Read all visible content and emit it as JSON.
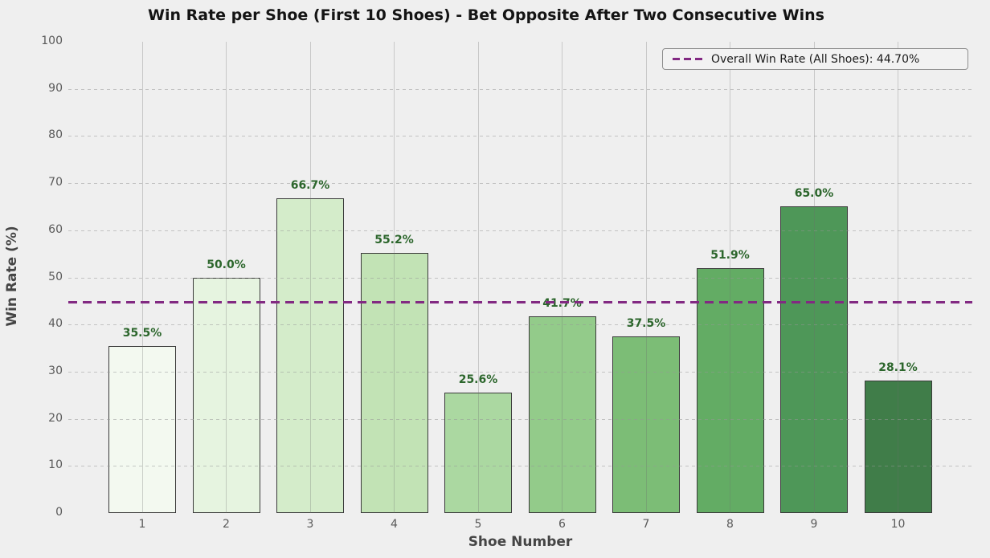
{
  "chart_data": {
    "type": "bar",
    "title": "Win Rate per Shoe (First 10 Shoes) - Bet Opposite After Two Consecutive Wins",
    "xlabel": "Shoe Number",
    "ylabel": "Win Rate (%)",
    "categories": [
      "1",
      "2",
      "3",
      "4",
      "5",
      "6",
      "7",
      "8",
      "9",
      "10"
    ],
    "values": [
      35.5,
      50.0,
      66.7,
      55.2,
      25.6,
      41.7,
      37.5,
      51.9,
      65.0,
      28.1
    ],
    "bar_labels": [
      "35.5%",
      "50.0%",
      "66.7%",
      "55.2%",
      "25.6%",
      "41.7%",
      "37.5%",
      "51.9%",
      "65.0%",
      "28.1%"
    ],
    "bar_colors": [
      "#f3f9f0",
      "#e6f4e0",
      "#d4ecca",
      "#c2e3b5",
      "#abd8a1",
      "#93cb8a",
      "#7cbd76",
      "#63ac64",
      "#4e9758",
      "#407d49"
    ],
    "bar_edge_color": "#3a3a3a",
    "value_label_color": "#2c662c",
    "ylim": [
      0,
      100
    ],
    "yticks": [
      0,
      10,
      20,
      30,
      40,
      50,
      60,
      70,
      80,
      90,
      100
    ],
    "grid": true,
    "legend_position": "upper right",
    "reference_line": {
      "value": 44.7,
      "color": "#822982",
      "style": "dashed",
      "legend_label": "Overall Win Rate (All Shoes): 44.70%"
    }
  },
  "styles": {
    "background": "#efefef",
    "tick_color": "#5a5a5a",
    "axis_label_color": "#454545",
    "title_color": "#141414"
  }
}
